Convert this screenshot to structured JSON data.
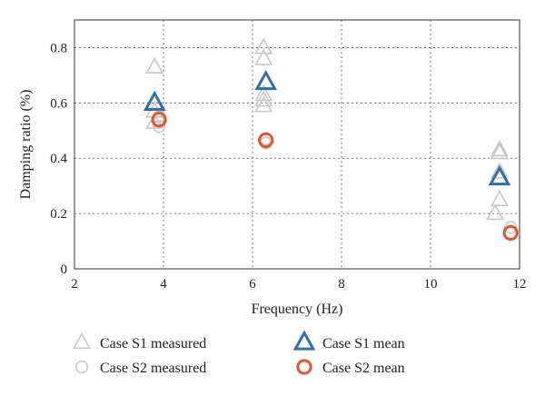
{
  "chart_data": {
    "type": "scatter",
    "xlabel": "Frequency (Hz)",
    "ylabel": "Damping ratio (%)",
    "xlim": [
      2,
      12
    ],
    "ylim": [
      0,
      0.9
    ],
    "xticks": [
      2,
      4,
      6,
      8,
      10,
      12
    ],
    "yticks": [
      0,
      0.2,
      0.4,
      0.6,
      0.8
    ],
    "xtick_labels": [
      "2",
      "4",
      "6",
      "8",
      "10",
      "12"
    ],
    "ytick_labels": [
      "0",
      "0.2",
      "0.4",
      "0.6",
      "0.8"
    ],
    "grid": true,
    "legend_position": "bottom",
    "series": [
      {
        "name": "Case S1 measured",
        "marker": "triangle",
        "filled": false,
        "color": "#c8c8c8",
        "points": [
          {
            "x": 3.8,
            "y": 0.73
          },
          {
            "x": 3.8,
            "y": 0.6
          },
          {
            "x": 3.8,
            "y": 0.57
          },
          {
            "x": 3.8,
            "y": 0.53
          },
          {
            "x": 6.25,
            "y": 0.8
          },
          {
            "x": 6.25,
            "y": 0.76
          },
          {
            "x": 6.25,
            "y": 0.63
          },
          {
            "x": 6.25,
            "y": 0.61
          },
          {
            "x": 6.25,
            "y": 0.59
          },
          {
            "x": 11.55,
            "y": 0.43
          },
          {
            "x": 11.55,
            "y": 0.42
          },
          {
            "x": 11.55,
            "y": 0.35
          },
          {
            "x": 11.55,
            "y": 0.25
          },
          {
            "x": 11.45,
            "y": 0.2
          }
        ]
      },
      {
        "name": "Case S2 measured",
        "marker": "circle",
        "filled": false,
        "color": "#c8c8c8",
        "points": [
          {
            "x": 3.9,
            "y": 0.55
          },
          {
            "x": 3.9,
            "y": 0.53
          },
          {
            "x": 3.9,
            "y": 0.515
          },
          {
            "x": 6.3,
            "y": 0.47
          },
          {
            "x": 6.3,
            "y": 0.455
          },
          {
            "x": 11.8,
            "y": 0.15
          },
          {
            "x": 11.8,
            "y": 0.13
          }
        ]
      },
      {
        "name": "Case S1 mean",
        "marker": "triangle",
        "filled": false,
        "color": "#2f6fb1",
        "points": [
          {
            "x": 3.8,
            "y": 0.6
          },
          {
            "x": 6.3,
            "y": 0.675
          },
          {
            "x": 11.55,
            "y": 0.33
          }
        ]
      },
      {
        "name": "Case S2 mean",
        "marker": "circle",
        "filled": false,
        "color": "#e0582a",
        "points": [
          {
            "x": 3.9,
            "y": 0.54
          },
          {
            "x": 6.3,
            "y": 0.465
          },
          {
            "x": 11.8,
            "y": 0.13
          }
        ]
      }
    ],
    "legend": [
      {
        "label": "Case S1 measured",
        "marker": "triangle",
        "color": "#c8c8c8"
      },
      {
        "label": "Case S1 mean",
        "marker": "triangle",
        "color": "#2f6fb1"
      },
      {
        "label": "Case S2 measured",
        "marker": "circle",
        "color": "#c8c8c8"
      },
      {
        "label": "Case S2 mean",
        "marker": "circle",
        "color": "#e0582a"
      }
    ]
  }
}
